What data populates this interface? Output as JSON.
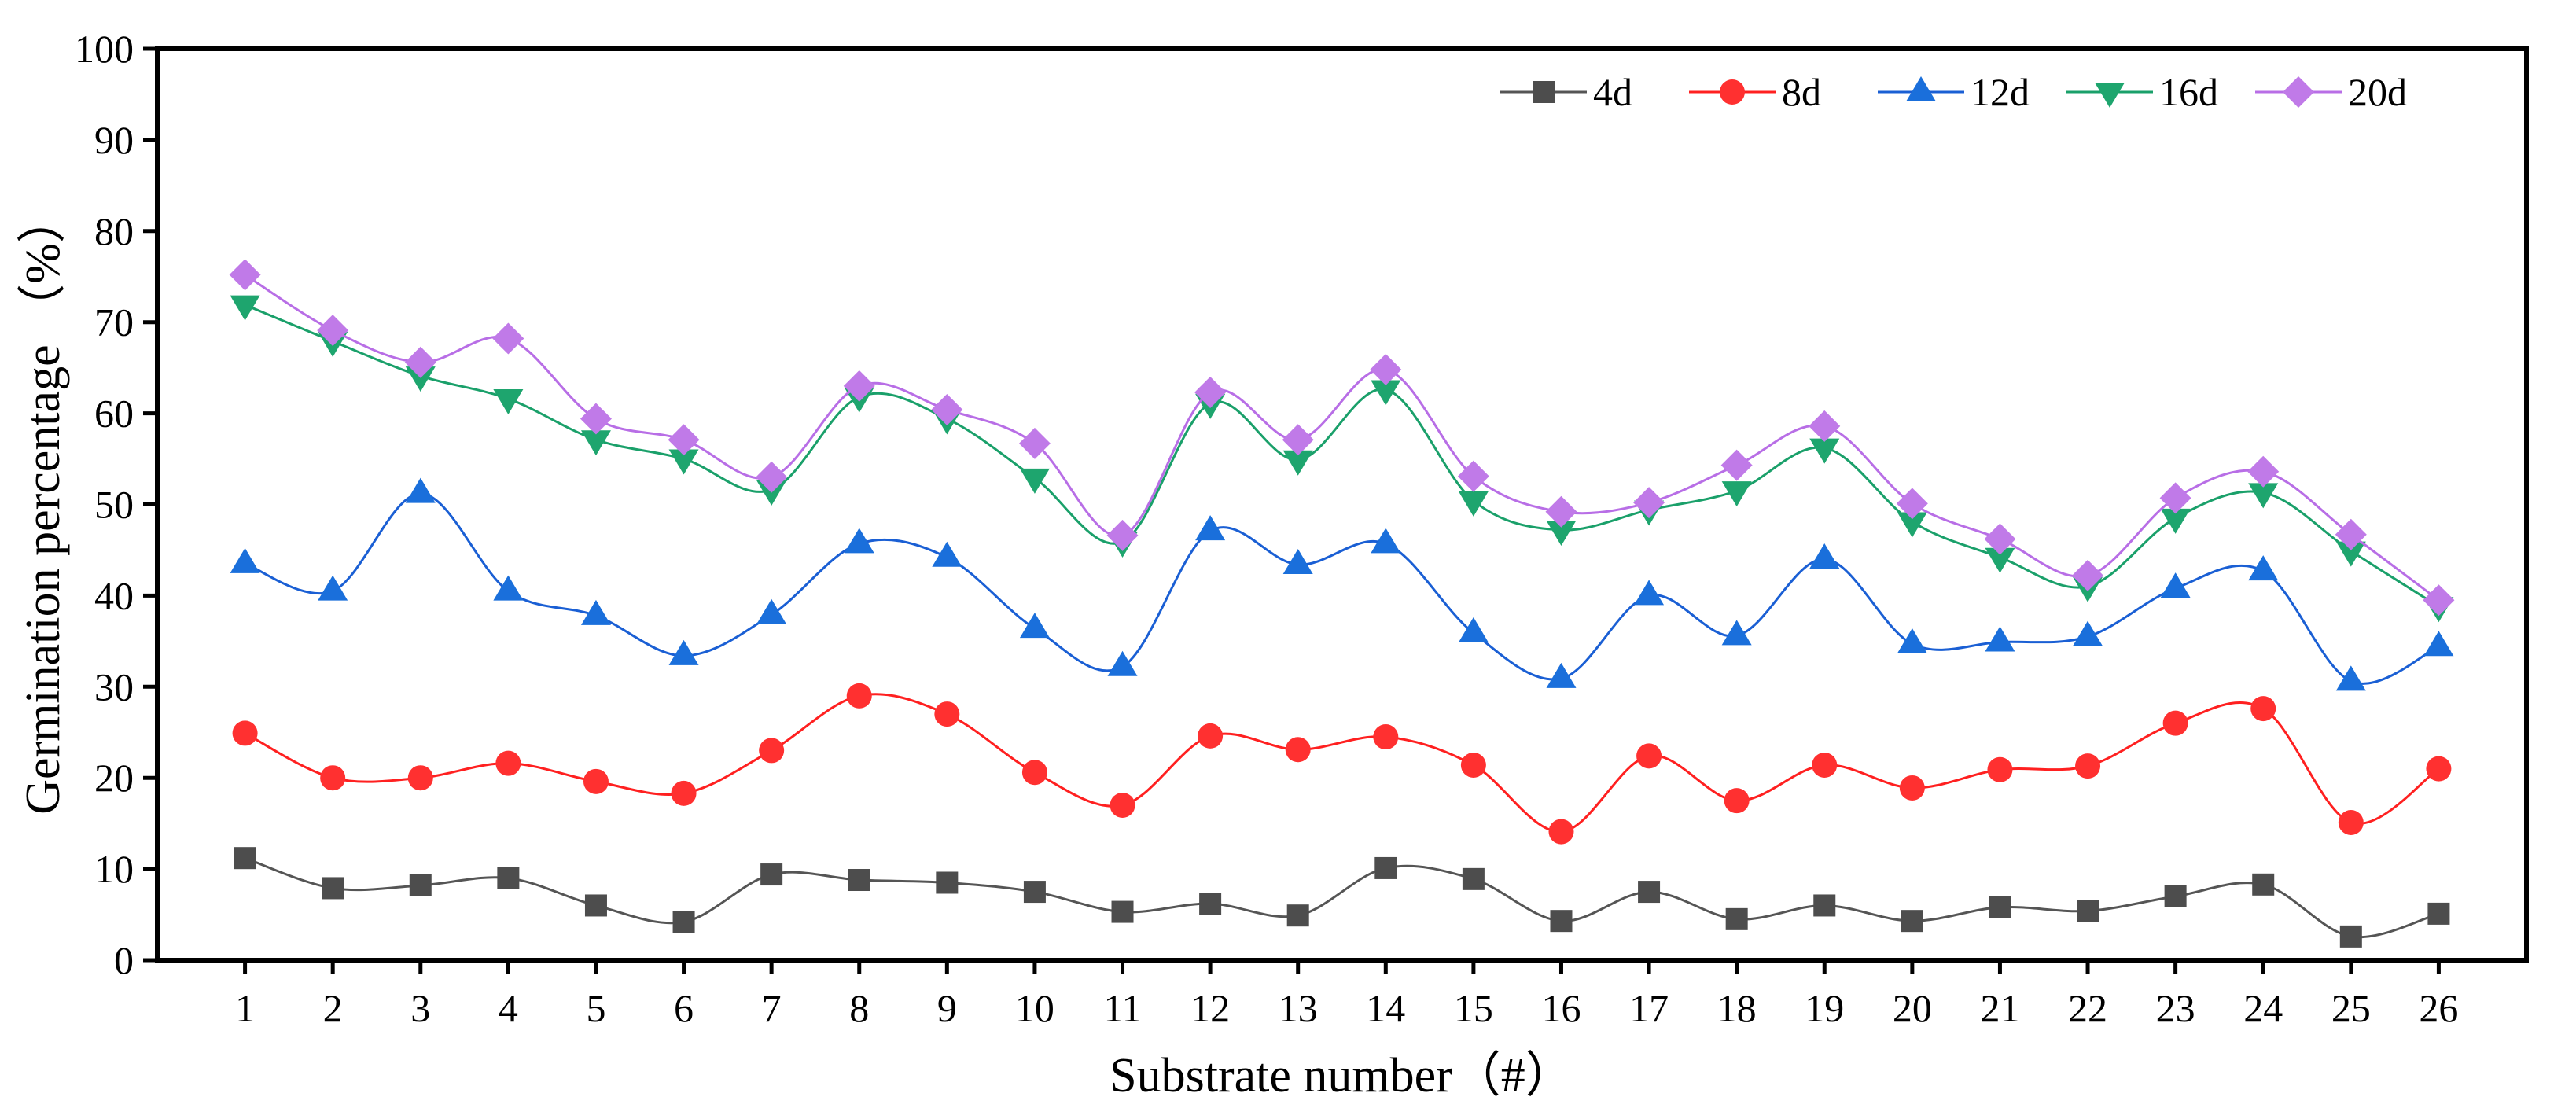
{
  "chart_data": {
    "type": "line",
    "title": "",
    "xlabel": "Substrate number（#）",
    "ylabel": "Germination percentage （%）",
    "xlim": [
      0,
      27
    ],
    "ylim": [
      0,
      100
    ],
    "yticks": [
      0,
      10,
      20,
      30,
      40,
      50,
      60,
      70,
      80,
      90,
      100
    ],
    "categories": [
      "1",
      "2",
      "3",
      "4",
      "5",
      "6",
      "7",
      "8",
      "9",
      "10",
      "11",
      "12",
      "13",
      "14",
      "15",
      "16",
      "17",
      "18",
      "19",
      "20",
      "21",
      "22",
      "23",
      "24",
      "25",
      "26"
    ],
    "grid": false,
    "legend_position": "top-right",
    "series": [
      {
        "name": "4d",
        "marker": "square",
        "color": "#555555",
        "marker_color": "#4d4d4d",
        "values": [
          11.2,
          7.9,
          8.2,
          9.0,
          6.0,
          4.2,
          9.4,
          8.8,
          8.5,
          7.5,
          5.3,
          6.2,
          4.9,
          10.1,
          8.9,
          4.3,
          7.5,
          4.5,
          6.0,
          4.3,
          5.8,
          5.4,
          7.0,
          8.3,
          2.6,
          5.1
        ]
      },
      {
        "name": "8d",
        "marker": "circle",
        "color": "#ff2020",
        "marker_color": "#ff3030",
        "values": [
          24.9,
          20.0,
          20.0,
          21.6,
          19.6,
          18.3,
          23.0,
          29.0,
          27.0,
          20.6,
          17.0,
          24.6,
          23.1,
          24.5,
          21.4,
          14.1,
          22.4,
          17.5,
          21.4,
          18.9,
          20.9,
          21.3,
          26.0,
          27.6,
          15.1,
          21.0
        ]
      },
      {
        "name": "12d",
        "marker": "triangle-up",
        "color": "#1a5fd4",
        "marker_color": "#1a6fdb",
        "values": [
          43.5,
          40.5,
          51.2,
          40.5,
          37.8,
          33.4,
          37.9,
          45.7,
          44.2,
          36.4,
          32.2,
          47.1,
          43.4,
          45.7,
          35.9,
          30.9,
          40.0,
          35.6,
          44.0,
          34.7,
          34.9,
          35.5,
          40.8,
          42.7,
          30.6,
          34.4
        ]
      },
      {
        "name": "16d",
        "marker": "triangle-down",
        "color": "#1aa06a",
        "marker_color": "#1ea56e",
        "values": [
          71.9,
          67.9,
          64.1,
          61.6,
          57.1,
          55.0,
          51.6,
          61.8,
          59.4,
          52.9,
          45.9,
          61.1,
          54.9,
          62.6,
          50.4,
          47.2,
          49.4,
          51.5,
          56.2,
          48.1,
          44.2,
          41.0,
          48.5,
          51.3,
          44.9,
          38.8
        ]
      },
      {
        "name": "20d",
        "marker": "diamond",
        "color": "#b86ee6",
        "marker_color": "#c07ae8",
        "values": [
          75.2,
          69.1,
          65.6,
          68.2,
          59.4,
          57.1,
          53.0,
          63.0,
          60.4,
          56.7,
          46.6,
          62.3,
          57.1,
          64.8,
          53.1,
          49.2,
          50.2,
          54.3,
          58.6,
          50.1,
          46.2,
          42.2,
          50.7,
          53.6,
          46.7,
          39.5
        ]
      }
    ]
  }
}
